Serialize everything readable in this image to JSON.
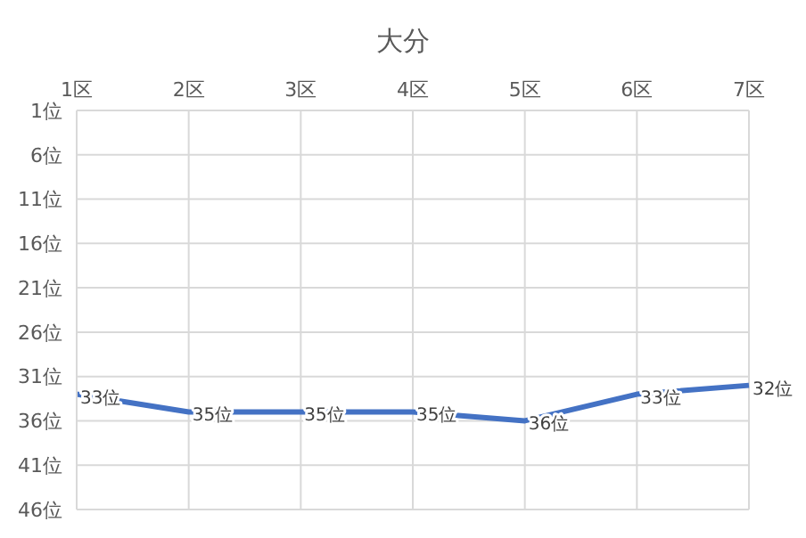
{
  "chart_data": {
    "type": "line",
    "title": "大分",
    "categories": [
      "1区",
      "2区",
      "3区",
      "4区",
      "5区",
      "6区",
      "7区"
    ],
    "series": [
      {
        "color": "#4472c4",
        "values": [
          33,
          35,
          35,
          35,
          36,
          33,
          32
        ],
        "value_labels": [
          "33位",
          "35位",
          "35位",
          "35位",
          "36位",
          "33位",
          "32位"
        ]
      }
    ],
    "ylim": [
      46,
      1
    ],
    "yticks": [
      {
        "value": 1,
        "label": "1位"
      },
      {
        "value": 6,
        "label": "6位"
      },
      {
        "value": 11,
        "label": "11位"
      },
      {
        "value": 16,
        "label": "16位"
      },
      {
        "value": 21,
        "label": "21位"
      },
      {
        "value": 26,
        "label": "26位"
      },
      {
        "value": 31,
        "label": "31位"
      },
      {
        "value": 36,
        "label": "36位"
      },
      {
        "value": 41,
        "label": "41位"
      },
      {
        "value": 46,
        "label": "46位"
      }
    ],
    "grid": true,
    "marker": "none",
    "line_style": "solid"
  }
}
